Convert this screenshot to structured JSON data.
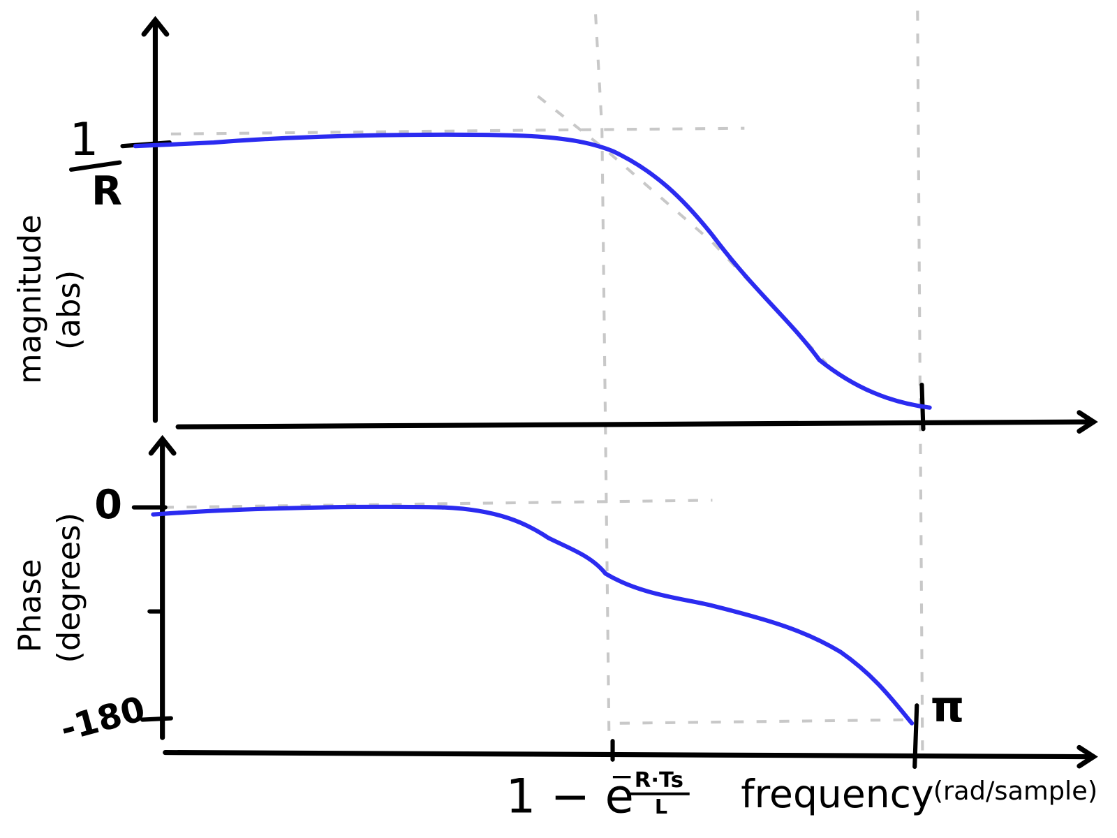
{
  "magnitude_plot": {
    "y_label": [
      "magnitude",
      "(abs)"
    ],
    "y_tick": {
      "numerator": "1",
      "denominator": "R"
    }
  },
  "phase_plot": {
    "y_label": [
      "Phase",
      "(degrees)"
    ],
    "y_ticks": [
      "0",
      "-180"
    ]
  },
  "x_axis": {
    "cutoff_label": {
      "base": "1 − e",
      "exponent_sign": "−",
      "exponent_numerator": "R·Ts",
      "exponent_denominator": "L"
    },
    "label": "frequency",
    "unit": "(rad/sample)",
    "end_tick": "π"
  }
}
